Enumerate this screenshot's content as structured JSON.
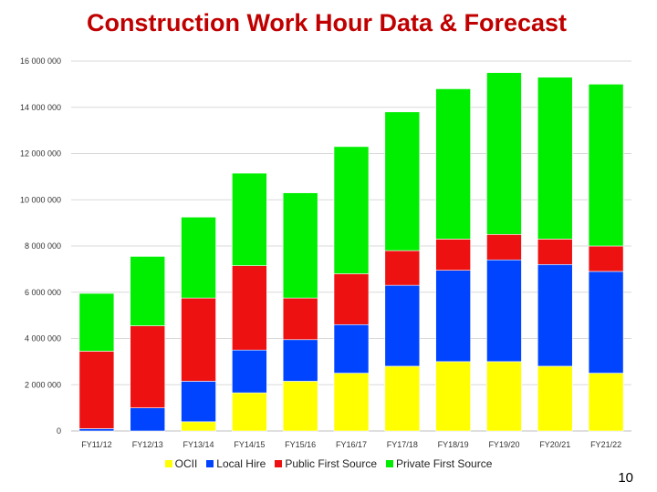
{
  "chart_data": {
    "type": "bar",
    "stacked": true,
    "title": "Construction Work Hour Data & Forecast",
    "xlabel": "",
    "ylabel": "",
    "ylim": [
      0,
      16000000
    ],
    "yticks": [
      0,
      2000000,
      4000000,
      6000000,
      8000000,
      10000000,
      12000000,
      14000000,
      16000000
    ],
    "ytick_labels": [
      "0",
      "2 000 000",
      "4 000 000",
      "6 000 000",
      "8 000 000",
      "10 000 000",
      "12 000 000",
      "14 000 000",
      "16 000 000"
    ],
    "grid": true,
    "legend": "bottom",
    "categories": [
      "FY11/12",
      "FY12/13",
      "FY13/14",
      "FY14/15",
      "FY15/16",
      "FY16/17",
      "FY17/18",
      "FY18/19",
      "FY19/20",
      "FY20/21",
      "FY21/22"
    ],
    "series": [
      {
        "name": "OCII",
        "color": "#ffff00",
        "values": [
          0,
          0,
          400000,
          1650000,
          2150000,
          2500000,
          2800000,
          3000000,
          3000000,
          2800000,
          2500000
        ]
      },
      {
        "name": "Local Hire",
        "color": "#0044ff",
        "values": [
          100000,
          1000000,
          1750000,
          1850000,
          1800000,
          2100000,
          3500000,
          3950000,
          4400000,
          4400000,
          4400000
        ]
      },
      {
        "name": "Public First Source",
        "color": "#ee1111",
        "values": [
          3350000,
          3550000,
          3600000,
          3650000,
          1800000,
          2200000,
          1500000,
          1350000,
          1100000,
          1100000,
          1100000
        ]
      },
      {
        "name": "Private First Source",
        "color": "#00ee00",
        "values": [
          2500000,
          3000000,
          3500000,
          4000000,
          4550000,
          5500000,
          6000000,
          6500000,
          7000000,
          7000000,
          7000000
        ]
      }
    ]
  },
  "page_number": "10"
}
